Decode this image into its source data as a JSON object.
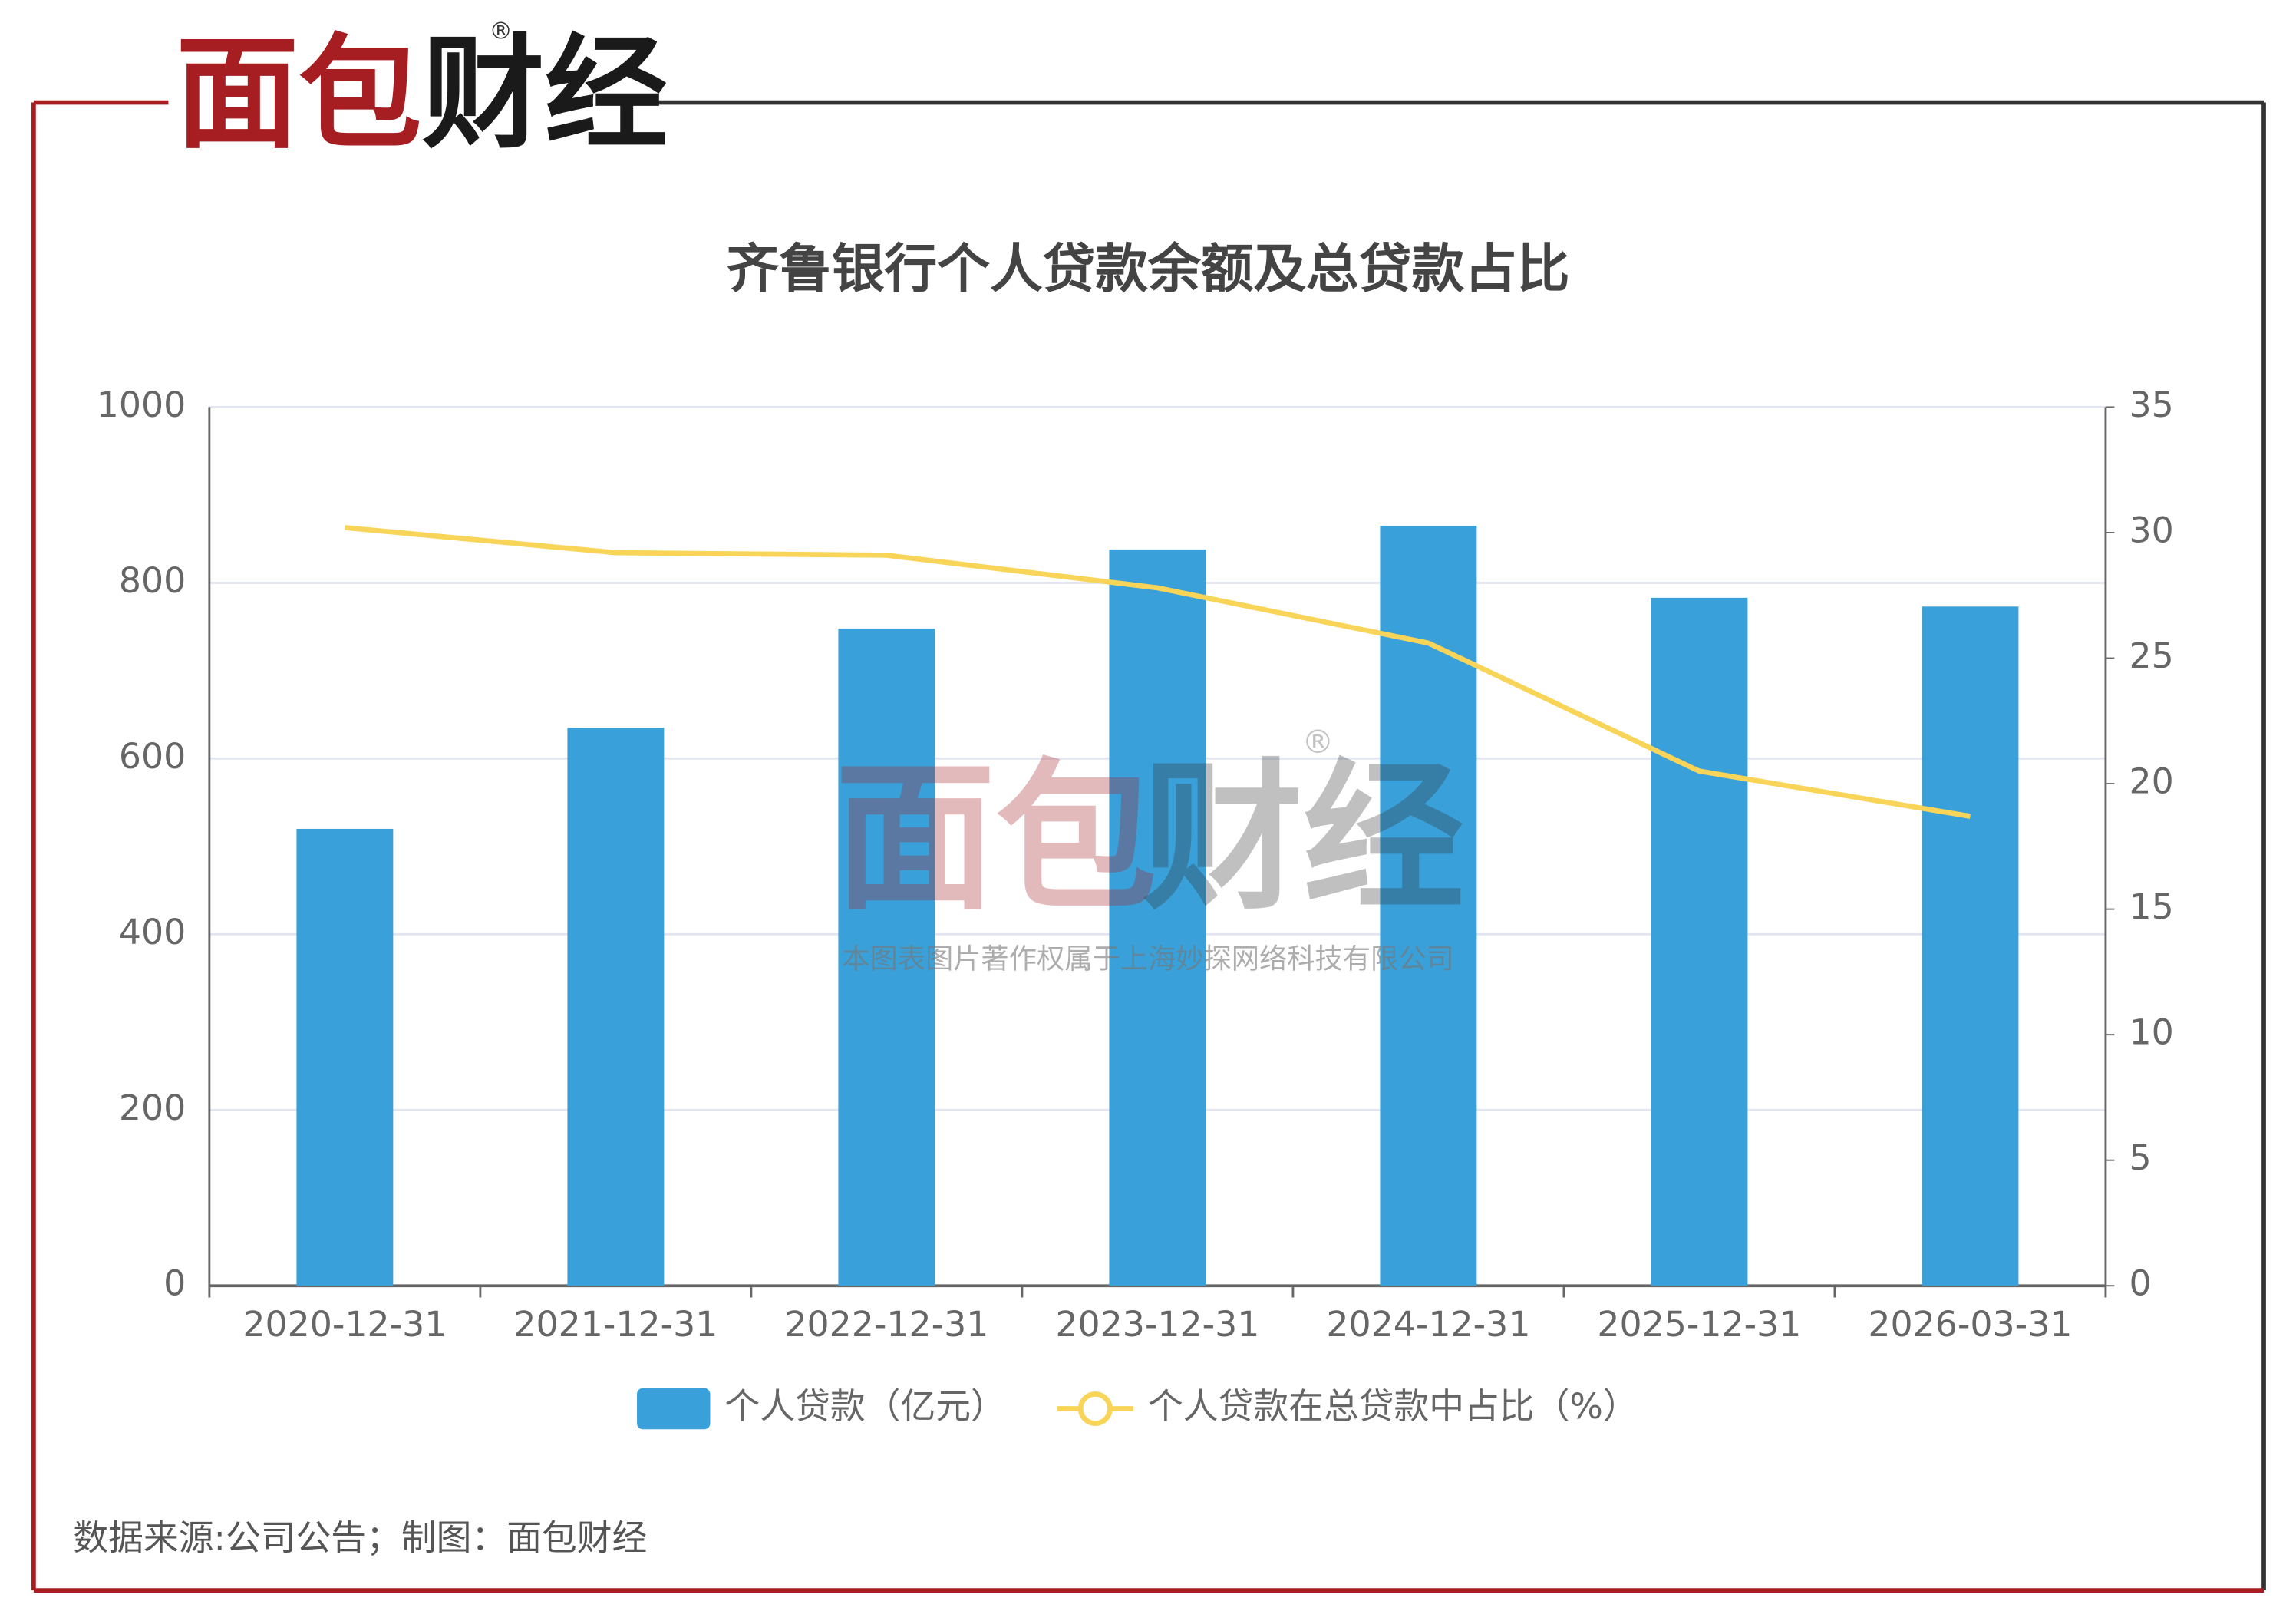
{
  "logo": {
    "red": "面包",
    "dark": "财经",
    "mark": "®"
  },
  "watermark": {
    "red": "面包",
    "dark": "财经",
    "mark": "®",
    "note": "本图表图片著作权属于上海妙探网络科技有限公司"
  },
  "source": "数据来源:公司公告；制图：面包财经",
  "chart_data": {
    "type": "bar-line",
    "title": "齐鲁银行个人贷款余额及总贷款占比",
    "categories": [
      "2020-12-31",
      "2021-12-31",
      "2022-12-31",
      "2023-12-31",
      "2024-12-31",
      "2025-12-31",
      "2026-03-31"
    ],
    "series": [
      {
        "name": "个人贷款（亿元）",
        "type": "bar",
        "color": "#3aa0d9",
        "values": [
          520,
          635,
          748,
          838,
          865,
          783,
          773
        ]
      },
      {
        "name": "个人贷款在总贷款中占比（%）",
        "type": "line",
        "axis": "y2",
        "color": "#f8d558",
        "values": [
          30.2,
          29.2,
          29.1,
          27.8,
          25.6,
          20.5,
          18.7
        ]
      }
    ],
    "ylim": [
      0,
      1000
    ],
    "yticks": [
      0,
      200,
      400,
      600,
      800,
      1000
    ],
    "y2lim": [
      0,
      35
    ],
    "y2ticks": [
      0,
      5,
      10,
      15,
      20,
      25,
      30,
      35
    ],
    "grid": true,
    "legend": "bottom"
  }
}
